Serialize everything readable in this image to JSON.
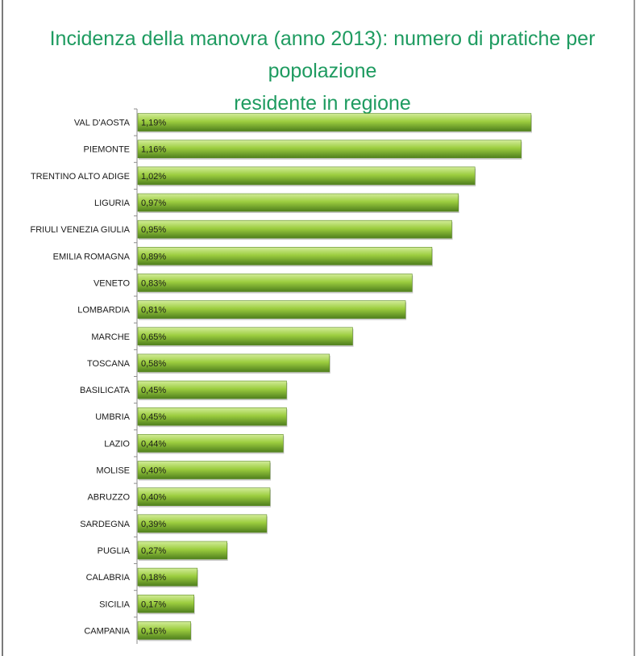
{
  "chart_data": {
    "type": "bar",
    "orientation": "horizontal",
    "title_line1": "Incidenza della manovra (anno 2013): numero di pratiche per popolazione",
    "title_line2": "residente in regione",
    "categories": [
      "VAL D'AOSTA",
      "PIEMONTE",
      "TRENTINO ALTO ADIGE",
      "LIGURIA",
      "FRIULI VENEZIA GIULIA",
      "EMILIA ROMAGNA",
      "VENETO",
      "LOMBARDIA",
      "MARCHE",
      "TOSCANA",
      "BASILICATA",
      "UMBRIA",
      "LAZIO",
      "MOLISE",
      "ABRUZZO",
      "SARDEGNA",
      "PUGLIA",
      "CALABRIA",
      "SICILIA",
      "CAMPANIA"
    ],
    "values": [
      1.19,
      1.16,
      1.02,
      0.97,
      0.95,
      0.89,
      0.83,
      0.81,
      0.65,
      0.58,
      0.45,
      0.45,
      0.44,
      0.4,
      0.4,
      0.39,
      0.27,
      0.18,
      0.17,
      0.16
    ],
    "value_labels": [
      "1,19%",
      "1,16%",
      "1,02%",
      "0,97%",
      "0,95%",
      "0,89%",
      "0,83%",
      "0,81%",
      "0,65%",
      "0,58%",
      "0,45%",
      "0,45%",
      "0,44%",
      "0,40%",
      "0,40%",
      "0,39%",
      "0,27%",
      "0,18%",
      "0,17%",
      "0,16%"
    ],
    "xlim": [
      0,
      1.2
    ],
    "grid": false,
    "legend": "none",
    "colors": {
      "bar_top": "#d3ec9a",
      "bar_mid": "#9ccd3f",
      "bar_bottom": "#4f7f1d",
      "bar_stroke": "#5d8a26",
      "title": "#1e9b60"
    }
  }
}
